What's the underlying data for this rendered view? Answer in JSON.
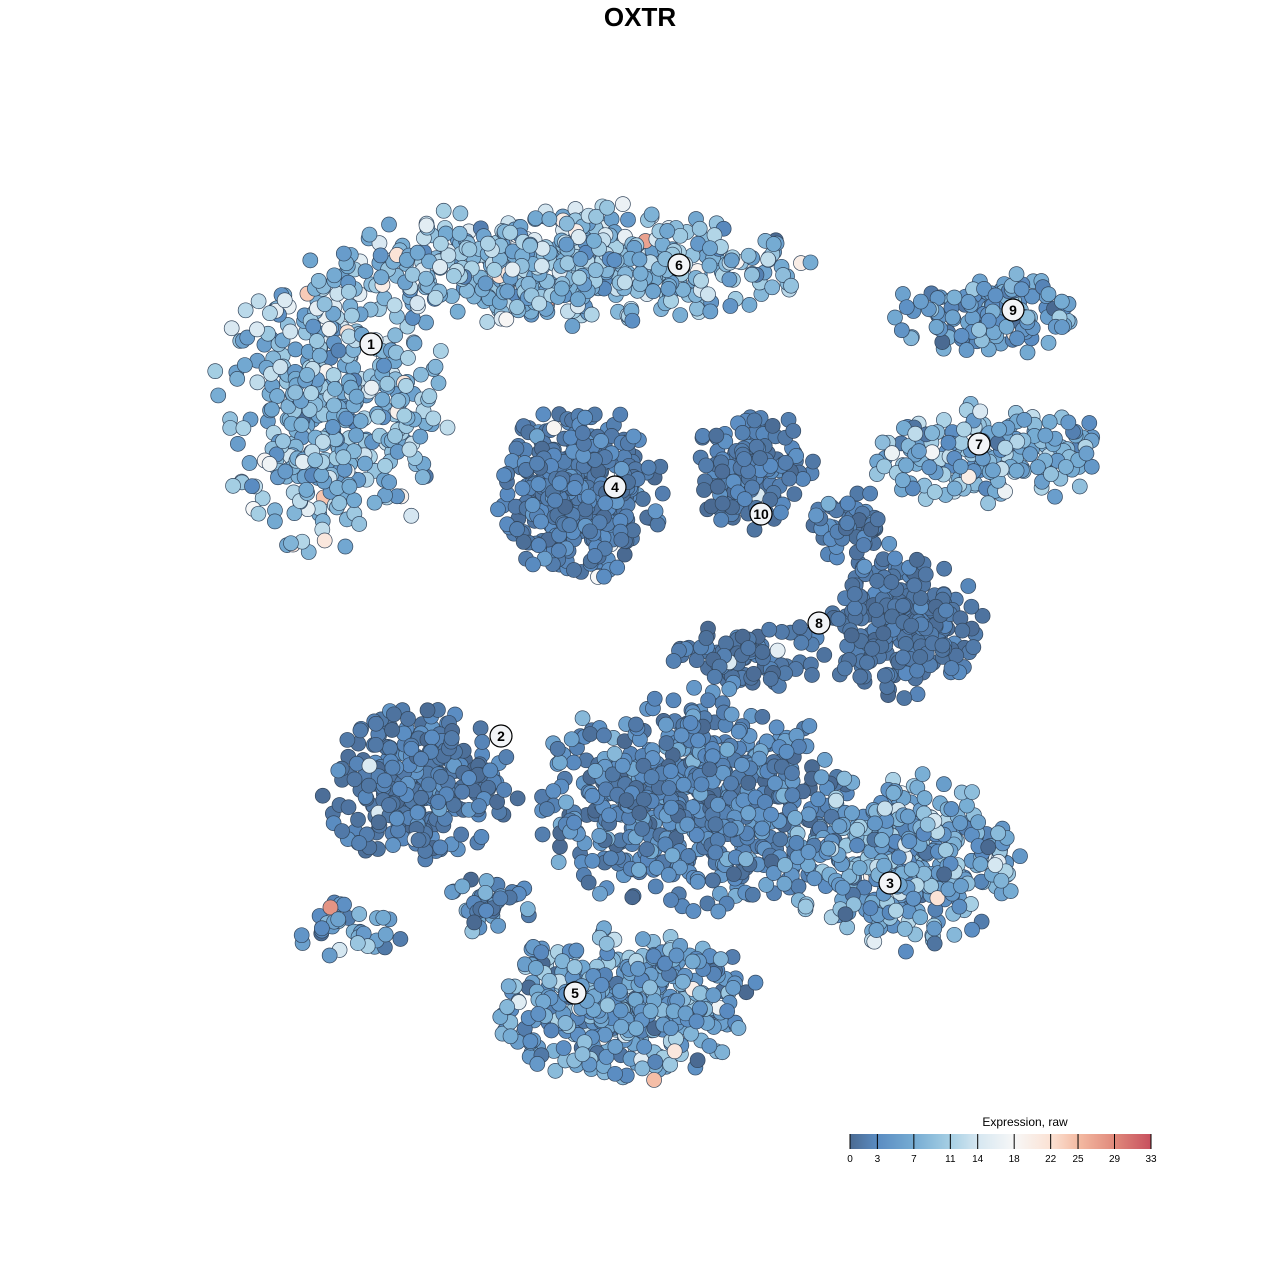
{
  "chart_data": {
    "type": "scatter",
    "title": "OXTR",
    "xlabel": "",
    "ylabel": "",
    "grid": false,
    "cluster_labels": [
      "1",
      "2",
      "3",
      "4",
      "5",
      "6",
      "7",
      "8",
      "9",
      "10"
    ],
    "colorbar": {
      "title": "Expression, raw",
      "ticks": [
        0,
        3,
        7,
        11,
        14,
        18,
        22,
        25,
        29,
        33
      ],
      "range": [
        0,
        33
      ],
      "colors": [
        "#4a6a92",
        "#5a8cc2",
        "#76acd3",
        "#a6cfe4",
        "#d6e7f1",
        "#f7f7f7",
        "#fbe2d4",
        "#f4bba3",
        "#e0897b",
        "#c7505e"
      ],
      "placement": "bottom-right"
    }
  }
}
